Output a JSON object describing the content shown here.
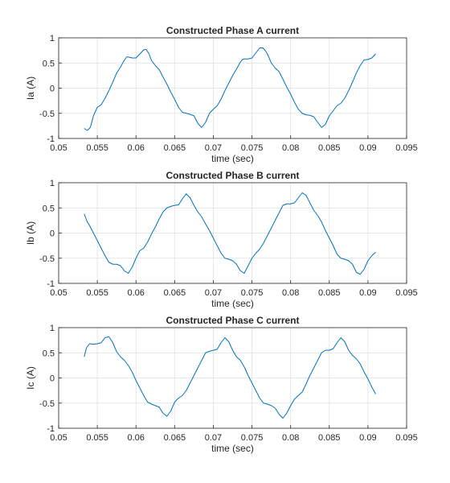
{
  "chart_data": [
    {
      "type": "line",
      "title": "Constructed Phase A current",
      "xlabel": "time (sec)",
      "ylabel": "Ia (A)",
      "xlim": [
        0.05,
        0.095
      ],
      "ylim": [
        -1,
        1
      ],
      "xticks": [
        0.05,
        0.055,
        0.06,
        0.065,
        0.07,
        0.075,
        0.08,
        0.085,
        0.09,
        0.095
      ],
      "xtick_labels": [
        "0.05",
        "0.055",
        "0.06",
        "0.065",
        "0.07",
        "0.075",
        "0.08",
        "0.085",
        "0.09",
        "0.095"
      ],
      "yticks": [
        1,
        0.5,
        0,
        -0.5,
        -1
      ],
      "ytick_labels": [
        "1",
        "0.5",
        "0",
        "-0.5",
        "-1"
      ],
      "grid": true,
      "series": [
        {
          "color": "#0072BD",
          "x": [
            0.0533,
            0.0537,
            0.0541,
            0.0545,
            0.055,
            0.0555,
            0.056,
            0.0565,
            0.057,
            0.0575,
            0.058,
            0.0585,
            0.0588,
            0.059,
            0.0595,
            0.06,
            0.0605,
            0.061,
            0.0613,
            0.0617,
            0.062,
            0.0625,
            0.063,
            0.0635,
            0.064,
            0.0645,
            0.065,
            0.0655,
            0.066,
            0.0665,
            0.067,
            0.0675,
            0.068,
            0.0685,
            0.069,
            0.0695,
            0.07,
            0.0705,
            0.071,
            0.0715,
            0.072,
            0.0725,
            0.073,
            0.0735,
            0.0738,
            0.074,
            0.0745,
            0.075,
            0.0755,
            0.076,
            0.0764,
            0.0767,
            0.077,
            0.0775,
            0.078,
            0.0785,
            0.079,
            0.0795,
            0.08,
            0.0805,
            0.081,
            0.0815,
            0.082,
            0.0825,
            0.083,
            0.0835,
            0.084,
            0.0845,
            0.085,
            0.0855,
            0.086,
            0.0865,
            0.087,
            0.0875,
            0.088,
            0.0885,
            0.089,
            0.0895,
            0.09,
            0.0905,
            0.091
          ],
          "y": [
            -0.8,
            -0.84,
            -0.78,
            -0.55,
            -0.38,
            -0.33,
            -0.2,
            -0.05,
            0.12,
            0.3,
            0.42,
            0.56,
            0.62,
            0.62,
            0.6,
            0.6,
            0.68,
            0.76,
            0.77,
            0.68,
            0.55,
            0.45,
            0.37,
            0.22,
            0.08,
            -0.08,
            -0.22,
            -0.38,
            -0.48,
            -0.5,
            -0.52,
            -0.55,
            -0.7,
            -0.78,
            -0.68,
            -0.5,
            -0.42,
            -0.35,
            -0.22,
            -0.05,
            0.1,
            0.25,
            0.38,
            0.52,
            0.57,
            0.58,
            0.58,
            0.6,
            0.7,
            0.8,
            0.8,
            0.75,
            0.68,
            0.5,
            0.4,
            0.33,
            0.18,
            0.02,
            -0.12,
            -0.28,
            -0.42,
            -0.5,
            -0.53,
            -0.54,
            -0.57,
            -0.68,
            -0.78,
            -0.72,
            -0.55,
            -0.45,
            -0.35,
            -0.3,
            -0.2,
            -0.05,
            0.12,
            0.3,
            0.45,
            0.56,
            0.57,
            0.6,
            0.68
          ]
        }
      ]
    },
    {
      "type": "line",
      "title": "Constructed Phase B current",
      "xlabel": "time (sec)",
      "ylabel": "Ib (A)",
      "xlim": [
        0.05,
        0.095
      ],
      "ylim": [
        -1,
        1
      ],
      "xticks": [
        0.05,
        0.055,
        0.06,
        0.065,
        0.07,
        0.075,
        0.08,
        0.085,
        0.09,
        0.095
      ],
      "xtick_labels": [
        "0.05",
        "0.055",
        "0.06",
        "0.065",
        "0.07",
        "0.075",
        "0.08",
        "0.085",
        "0.09",
        "0.095"
      ],
      "yticks": [
        1,
        0.5,
        0,
        -0.5,
        -1
      ],
      "ytick_labels": [
        "1",
        "0.5",
        "0",
        "-0.5",
        "-1"
      ],
      "grid": true,
      "series": [
        {
          "color": "#0072BD",
          "x": [
            0.0533,
            0.0537,
            0.054,
            0.0545,
            0.055,
            0.0555,
            0.056,
            0.0565,
            0.057,
            0.0575,
            0.058,
            0.0585,
            0.059,
            0.0595,
            0.06,
            0.0605,
            0.061,
            0.0615,
            0.062,
            0.0625,
            0.063,
            0.0635,
            0.064,
            0.0645,
            0.065,
            0.0655,
            0.066,
            0.0665,
            0.067,
            0.0675,
            0.068,
            0.0685,
            0.069,
            0.0695,
            0.07,
            0.0705,
            0.071,
            0.0715,
            0.072,
            0.0725,
            0.073,
            0.0735,
            0.074,
            0.0745,
            0.075,
            0.0755,
            0.076,
            0.0765,
            0.077,
            0.0775,
            0.078,
            0.0785,
            0.079,
            0.0795,
            0.08,
            0.0805,
            0.081,
            0.0815,
            0.082,
            0.0825,
            0.083,
            0.0835,
            0.084,
            0.0845,
            0.085,
            0.0855,
            0.086,
            0.0865,
            0.087,
            0.0875,
            0.088,
            0.0885,
            0.089,
            0.0895,
            0.09,
            0.0905,
            0.091
          ],
          "y": [
            0.38,
            0.22,
            0.15,
            0.0,
            -0.15,
            -0.3,
            -0.45,
            -0.58,
            -0.62,
            -0.62,
            -0.65,
            -0.75,
            -0.8,
            -0.68,
            -0.5,
            -0.35,
            -0.3,
            -0.18,
            -0.02,
            0.12,
            0.28,
            0.42,
            0.5,
            0.53,
            0.55,
            0.56,
            0.68,
            0.78,
            0.7,
            0.55,
            0.42,
            0.32,
            0.18,
            0.05,
            -0.1,
            -0.25,
            -0.4,
            -0.5,
            -0.52,
            -0.55,
            -0.62,
            -0.75,
            -0.8,
            -0.65,
            -0.5,
            -0.4,
            -0.32,
            -0.2,
            -0.05,
            0.1,
            0.25,
            0.4,
            0.55,
            0.58,
            0.58,
            0.6,
            0.7,
            0.8,
            0.75,
            0.6,
            0.45,
            0.35,
            0.22,
            0.05,
            -0.1,
            -0.25,
            -0.42,
            -0.5,
            -0.52,
            -0.55,
            -0.62,
            -0.78,
            -0.82,
            -0.72,
            -0.55,
            -0.45,
            -0.38
          ]
        }
      ]
    },
    {
      "type": "line",
      "title": "Constructed Phase C current",
      "xlabel": "time (sec)",
      "ylabel": "Ic (A)",
      "xlim": [
        0.05,
        0.095
      ],
      "ylim": [
        -1,
        1
      ],
      "xticks": [
        0.05,
        0.055,
        0.06,
        0.065,
        0.07,
        0.075,
        0.08,
        0.085,
        0.09,
        0.095
      ],
      "xtick_labels": [
        "0.05",
        "0.055",
        "0.06",
        "0.065",
        "0.07",
        "0.075",
        "0.08",
        "0.085",
        "0.09",
        "0.095"
      ],
      "yticks": [
        1,
        0.5,
        0,
        -0.5,
        -1
      ],
      "ytick_labels": [
        "1",
        "0.5",
        "0",
        "-0.5",
        "-1"
      ],
      "grid": true,
      "series": [
        {
          "color": "#0072BD",
          "x": [
            0.0533,
            0.0536,
            0.054,
            0.0545,
            0.055,
            0.0555,
            0.056,
            0.0565,
            0.057,
            0.0575,
            0.058,
            0.0585,
            0.059,
            0.0595,
            0.06,
            0.0605,
            0.061,
            0.0615,
            0.062,
            0.0625,
            0.063,
            0.0635,
            0.064,
            0.0645,
            0.065,
            0.0655,
            0.066,
            0.0665,
            0.067,
            0.0675,
            0.068,
            0.0685,
            0.069,
            0.0695,
            0.07,
            0.0705,
            0.071,
            0.0715,
            0.072,
            0.0725,
            0.073,
            0.0735,
            0.074,
            0.0745,
            0.075,
            0.0755,
            0.076,
            0.0765,
            0.077,
            0.0775,
            0.078,
            0.0785,
            0.079,
            0.0795,
            0.08,
            0.0805,
            0.081,
            0.0815,
            0.082,
            0.0825,
            0.083,
            0.0835,
            0.084,
            0.0845,
            0.085,
            0.0855,
            0.086,
            0.0865,
            0.087,
            0.0875,
            0.088,
            0.0885,
            0.089,
            0.0895,
            0.09,
            0.0905,
            0.091
          ],
          "y": [
            0.42,
            0.6,
            0.68,
            0.67,
            0.68,
            0.7,
            0.8,
            0.82,
            0.7,
            0.52,
            0.42,
            0.35,
            0.25,
            0.12,
            -0.05,
            -0.2,
            -0.35,
            -0.48,
            -0.52,
            -0.55,
            -0.58,
            -0.7,
            -0.76,
            -0.66,
            -0.48,
            -0.4,
            -0.35,
            -0.25,
            -0.1,
            0.05,
            0.2,
            0.35,
            0.5,
            0.53,
            0.55,
            0.57,
            0.7,
            0.8,
            0.72,
            0.55,
            0.42,
            0.35,
            0.22,
            0.05,
            -0.1,
            -0.25,
            -0.4,
            -0.5,
            -0.52,
            -0.55,
            -0.6,
            -0.72,
            -0.8,
            -0.7,
            -0.55,
            -0.42,
            -0.35,
            -0.28,
            -0.12,
            0.05,
            0.2,
            0.35,
            0.5,
            0.55,
            0.55,
            0.58,
            0.7,
            0.8,
            0.72,
            0.55,
            0.45,
            0.38,
            0.28,
            0.12,
            -0.02,
            -0.18,
            -0.32
          ]
        }
      ]
    }
  ]
}
